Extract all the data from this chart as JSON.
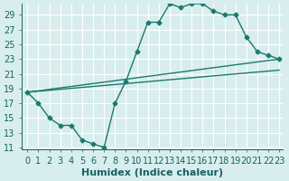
{
  "xlabel": "Humidex (Indice chaleur)",
  "bg_color": "#d8eeee",
  "grid_color": "#ffffff",
  "line_color": "#1a7a6e",
  "xlim": [
    -0.5,
    23.3
  ],
  "ylim": [
    10.7,
    30.5
  ],
  "xticks": [
    0,
    1,
    2,
    3,
    4,
    5,
    6,
    7,
    8,
    9,
    10,
    11,
    12,
    13,
    14,
    15,
    16,
    17,
    18,
    19,
    20,
    21,
    22,
    23
  ],
  "yticks": [
    11,
    13,
    15,
    17,
    19,
    21,
    23,
    25,
    27,
    29
  ],
  "line1_x": [
    0,
    1,
    2,
    3,
    4,
    5,
    6,
    7,
    8,
    9,
    10,
    11,
    12,
    13,
    14,
    15,
    16,
    17,
    18,
    19,
    20,
    21,
    22,
    23
  ],
  "line1_y": [
    18.5,
    17.0,
    15.0,
    14.0,
    14.0,
    12.0,
    11.5,
    11.0,
    17.0,
    20.0,
    24.0,
    28.0,
    28.0,
    30.5,
    30.0,
    30.5,
    30.5,
    29.5,
    29.0,
    29.0,
    26.0,
    24.0,
    23.5,
    23.0
  ],
  "line2_x": [
    0,
    23
  ],
  "line2_y": [
    18.5,
    23.0
  ],
  "line3_x": [
    0,
    23
  ],
  "line3_y": [
    18.5,
    21.5
  ],
  "font_color": "#1a6060",
  "font_size": 7
}
